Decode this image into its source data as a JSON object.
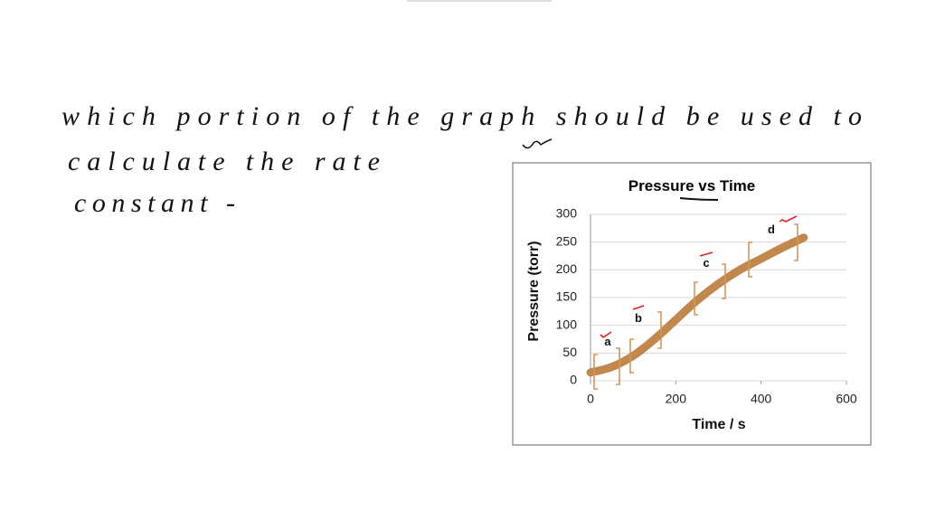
{
  "note_lines": [
    "which portion of the graph should be used to",
    "calculate the rate",
    "constant -"
  ],
  "chart_data": {
    "type": "line",
    "title": "Pressure vs Time",
    "x_label": "Time / s",
    "y_label": "Pressure (torr)",
    "x": [
      0,
      50,
      100,
      150,
      200,
      250,
      300,
      350,
      400,
      450,
      500
    ],
    "values": [
      15,
      25,
      45,
      75,
      110,
      145,
      175,
      200,
      220,
      240,
      258
    ],
    "color": "#c0874f",
    "xlim": [
      0,
      600
    ],
    "xticks": [
      0,
      200,
      400,
      600
    ],
    "ylim": [
      0,
      300
    ],
    "yticks": [
      0,
      50,
      100,
      150,
      200,
      250,
      300
    ],
    "grid": true,
    "annotations": [
      "a",
      "b",
      "c",
      "d"
    ]
  }
}
